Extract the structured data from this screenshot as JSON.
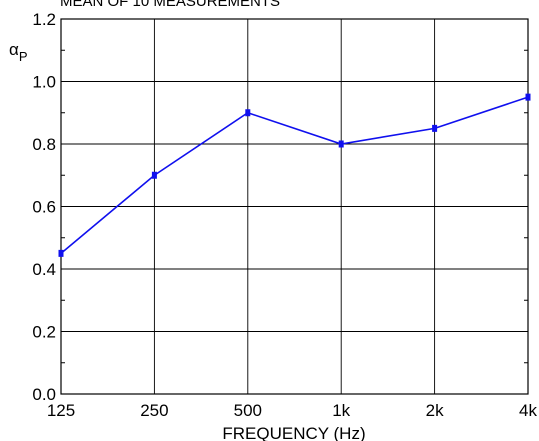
{
  "chart_data": {
    "type": "line",
    "title": "MEAN OF 10 MEASUREMENTS",
    "ylabel_symbol": "α",
    "ylabel_sub": "P",
    "xlabel": "FREQUENCY (Hz)",
    "categories": [
      "125",
      "250",
      "500",
      "1k",
      "2k",
      "4k"
    ],
    "series": [
      {
        "values": [
          0.45,
          0.7,
          0.9,
          0.8,
          0.85,
          0.95
        ]
      }
    ],
    "ylim": [
      0.0,
      1.2
    ],
    "yticks": [
      "0.0",
      "0.2",
      "0.4",
      "0.6",
      "0.8",
      "1.0",
      "1.2"
    ],
    "grid": true,
    "series_color": "#1010ee"
  }
}
